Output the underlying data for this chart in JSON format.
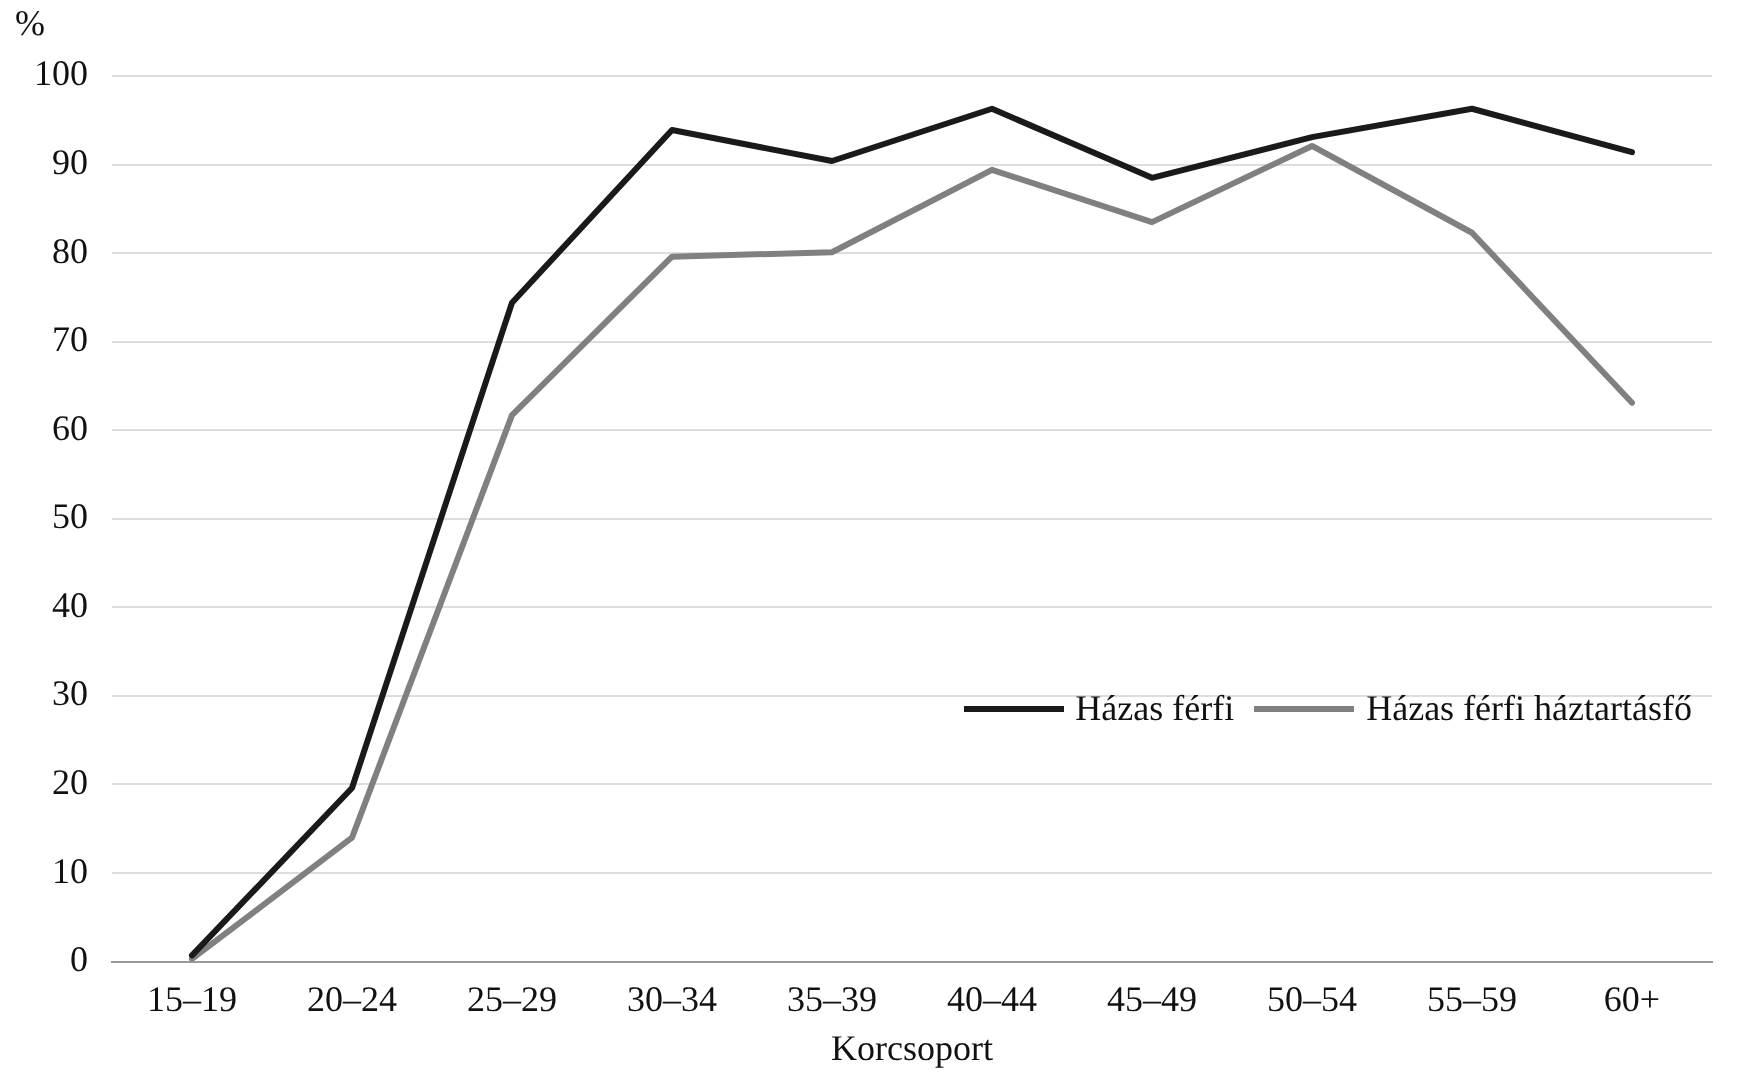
{
  "chart_data": {
    "type": "line",
    "xlabel": "Korcsoport",
    "ylabel": "%",
    "categories": [
      "15–19",
      "20–24",
      "25–29",
      "30–34",
      "35–39",
      "40–44",
      "45–49",
      "50–54",
      "55–59",
      "60+"
    ],
    "series": [
      {
        "name": "Házas férfi",
        "color": "#1a1a1a",
        "values": [
          0.7,
          19.6,
          74.4,
          93.9,
          90.4,
          96.3,
          88.5,
          93.1,
          96.3,
          91.4
        ]
      },
      {
        "name": "Házas férfi háztartásfő",
        "color": "#808080",
        "values": [
          0.3,
          14,
          61.7,
          79.6,
          80.1,
          89.4,
          83.5,
          92.1,
          82.3,
          63.1
        ]
      }
    ],
    "ylim": [
      0,
      100
    ],
    "yticks": [
      0,
      10,
      20,
      30,
      40,
      50,
      60,
      70,
      80,
      90,
      100
    ],
    "grid": "y",
    "legend": "right",
    "marker": "none",
    "line_style": "solid"
  }
}
